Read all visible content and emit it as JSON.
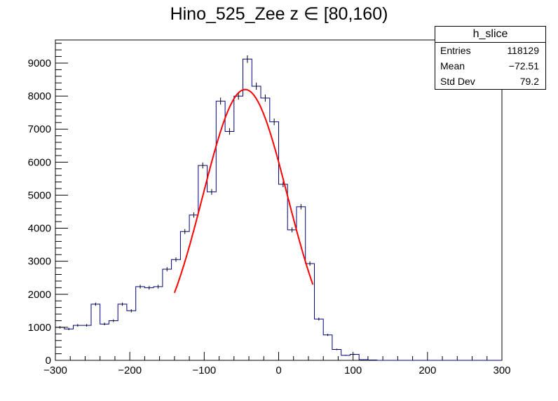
{
  "title": "Hino_525_Zee z  ∈ [80,160)",
  "stats": {
    "name": "h_slice",
    "rows": [
      {
        "label": "Entries",
        "value": "118129"
      },
      {
        "label": "Mean",
        "value": "−72.51"
      },
      {
        "label": "Std Dev",
        "value": "79.2"
      }
    ]
  },
  "chart_data": {
    "type": "histogram",
    "title": "Hino_525_Zee z  ∈ [80,160)",
    "xlim": [
      -300,
      300
    ],
    "ylim": [
      0,
      9700
    ],
    "x_ticks": [
      -300,
      -200,
      -100,
      0,
      100,
      200,
      300
    ],
    "x_tick_labels": [
      "−300",
      "−200",
      "−100",
      "0",
      "100",
      "200",
      "300"
    ],
    "y_ticks": [
      0,
      1000,
      2000,
      3000,
      4000,
      5000,
      6000,
      7000,
      8000,
      9000
    ],
    "y_tick_labels": [
      "0",
      "1000",
      "2000",
      "3000",
      "4000",
      "5000",
      "6000",
      "7000",
      "8000",
      "9000"
    ],
    "bin_width": 12,
    "bin_low_edges": [
      -300,
      -288,
      -276,
      -264,
      -252,
      -240,
      -228,
      -216,
      -204,
      -192,
      -180,
      -168,
      -156,
      -144,
      -132,
      -120,
      -108,
      -96,
      -84,
      -72,
      -60,
      -48,
      -36,
      -24,
      -12,
      0,
      12,
      24,
      36,
      48,
      60,
      72,
      84,
      96,
      108,
      120,
      132,
      144,
      156,
      168,
      180,
      192,
      204,
      216,
      228,
      240,
      252,
      264,
      276,
      288
    ],
    "counts": [
      1000,
      950,
      1060,
      1060,
      1700,
      1100,
      1200,
      1700,
      1500,
      2230,
      2200,
      2230,
      2760,
      3050,
      3900,
      4400,
      5900,
      5100,
      7850,
      6930,
      8000,
      9120,
      8300,
      7940,
      7220,
      5330,
      3950,
      4650,
      2930,
      1250,
      770,
      330,
      150,
      180,
      20,
      10,
      0,
      0,
      0,
      0,
      0,
      0,
      0,
      0,
      0,
      0,
      0,
      0,
      0,
      0
    ],
    "histogram_color": "#000080",
    "fit": {
      "type": "gaussian",
      "color": "#ff0000",
      "amplitude": 8200,
      "mean": -45,
      "sigma": 57,
      "range": [
        -140,
        46
      ]
    }
  }
}
